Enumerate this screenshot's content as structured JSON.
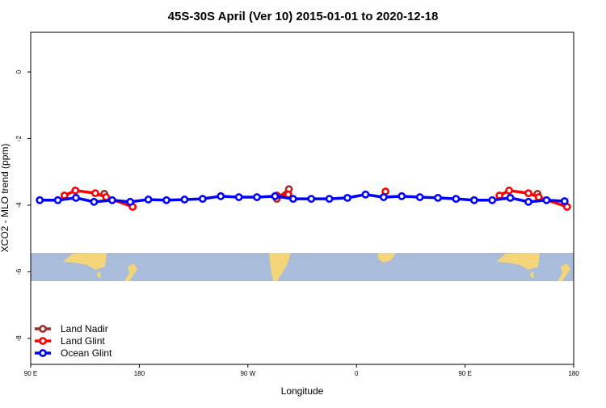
{
  "chart_data": {
    "type": "line",
    "title": "45S-30S April (Ver 10)   2015-01-01 to 2020-12-18",
    "x_label": "Longitude",
    "y_label": "XCO2 - MLO trend (ppm)",
    "xlim": [
      90,
      540
    ],
    "ylim": [
      -8.78,
      1.19
    ],
    "xticks": [
      {
        "value": 90,
        "label": "90 E"
      },
      {
        "value": 180,
        "label": "180"
      },
      {
        "value": 270,
        "label": "90 W"
      },
      {
        "value": 360,
        "label": "0"
      },
      {
        "value": 450,
        "label": "90 E"
      },
      {
        "value": 540,
        "label": "180"
      }
    ],
    "yticks": [
      0,
      -2,
      -4,
      -6,
      -8
    ],
    "legend": "bottom-left",
    "series": [
      {
        "name": "Land Nadir",
        "color": "#a52a2a",
        "x": [
          151,
          null,
          294,
          304,
          null,
          510
        ],
        "values": [
          -3.66,
          null,
          -3.81,
          -3.52,
          null,
          -3.66
        ]
      },
      {
        "name": "Land Glint",
        "color": "#ff0000",
        "x": [
          118,
          127,
          143.5,
          152.5,
          174.5,
          null,
          294,
          303.5,
          null,
          384,
          null,
          478.5,
          486.5,
          502.5,
          511,
          534.5
        ],
        "values": [
          -3.71,
          -3.56,
          -3.64,
          -3.76,
          -4.05,
          null,
          -3.71,
          -3.68,
          null,
          -3.59,
          null,
          -3.71,
          -3.56,
          -3.64,
          -3.76,
          -4.05
        ]
      },
      {
        "name": "Ocean Glint",
        "color": "#0000ff",
        "x": [
          97.5,
          112.5,
          127.5,
          142.5,
          157.5,
          172.5,
          187.5,
          202.5,
          217.5,
          232.5,
          247.5,
          262.5,
          277.5,
          292.5,
          307.5,
          322.5,
          337.5,
          352.5,
          367.5,
          382.5,
          397.5,
          412.5,
          427.5,
          442.5,
          457.5,
          472.5,
          487.5,
          502.5,
          517.5,
          532.5
        ],
        "values": [
          -3.85,
          -3.85,
          -3.78,
          -3.9,
          -3.85,
          -3.9,
          -3.83,
          -3.85,
          -3.83,
          -3.81,
          -3.73,
          -3.76,
          -3.76,
          -3.73,
          -3.81,
          -3.81,
          -3.81,
          -3.78,
          -3.68,
          -3.76,
          -3.73,
          -3.76,
          -3.78,
          -3.81,
          -3.85,
          -3.85,
          -3.78,
          -3.9,
          -3.85,
          -3.88
        ]
      }
    ]
  }
}
